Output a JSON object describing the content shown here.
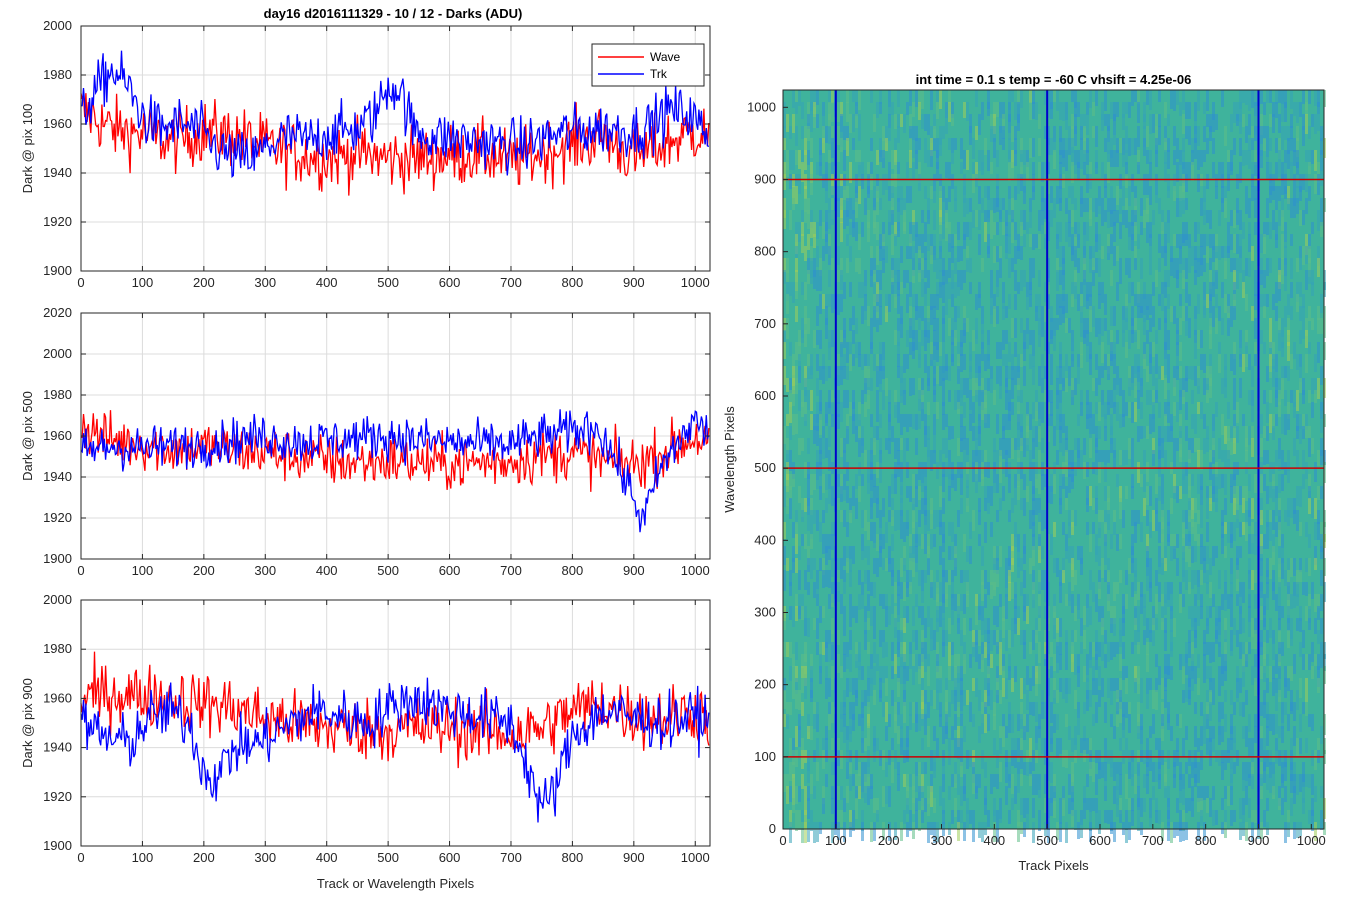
{
  "figure": {
    "title": "day16 d2016111329 - 10 / 12 - Darks (ADU)"
  },
  "chart_data": [
    {
      "id": "panel1",
      "type": "line",
      "ylabel": "Dark @ pix 100",
      "xlabel": "",
      "xlim": [
        0,
        1024
      ],
      "ylim": [
        1900,
        2000
      ],
      "xticks": [
        0,
        100,
        200,
        300,
        400,
        500,
        600,
        700,
        800,
        900,
        1000
      ],
      "yticks": [
        1900,
        1920,
        1940,
        1960,
        1980,
        2000
      ],
      "grid": true,
      "legend": {
        "placement": "top-right",
        "entries": [
          "Wave",
          "Trk"
        ]
      },
      "series": [
        {
          "name": "Wave",
          "color": "#ff0000",
          "x": [
            0,
            50,
            100,
            150,
            200,
            250,
            300,
            350,
            400,
            450,
            500,
            550,
            600,
            650,
            700,
            750,
            800,
            850,
            900,
            950,
            1000,
            1023
          ],
          "y": [
            1966,
            1958,
            1956,
            1953,
            1957,
            1955,
            1951,
            1948,
            1946,
            1948,
            1946,
            1946,
            1947,
            1948,
            1945,
            1948,
            1952,
            1955,
            1946,
            1952,
            1957,
            1955
          ]
        },
        {
          "name": "Trk",
          "color": "#0000ff",
          "x": [
            0,
            20,
            50,
            75,
            100,
            130,
            160,
            190,
            220,
            250,
            280,
            310,
            340,
            370,
            400,
            450,
            480,
            500,
            520,
            540,
            570,
            600,
            640,
            680,
            720,
            760,
            800,
            850,
            900,
            930,
            960,
            990,
            1010,
            1023
          ],
          "y": [
            1962,
            1972,
            1982,
            1976,
            1963,
            1958,
            1960,
            1958,
            1950,
            1946,
            1946,
            1952,
            1955,
            1953,
            1956,
            1958,
            1964,
            1976,
            1974,
            1958,
            1955,
            1954,
            1953,
            1952,
            1951,
            1955,
            1957,
            1958,
            1957,
            1960,
            1966,
            1964,
            1958,
            1956
          ]
        }
      ]
    },
    {
      "id": "panel2",
      "type": "line",
      "ylabel": "Dark @ pix 500",
      "xlabel": "",
      "xlim": [
        0,
        1024
      ],
      "ylim": [
        1900,
        2020
      ],
      "xticks": [
        0,
        100,
        200,
        300,
        400,
        500,
        600,
        700,
        800,
        900,
        1000
      ],
      "yticks": [
        1900,
        1920,
        1940,
        1960,
        1980,
        2000,
        2020
      ],
      "grid": true,
      "series": [
        {
          "name": "Wave",
          "color": "#ff0000",
          "x": [
            0,
            50,
            100,
            150,
            200,
            250,
            300,
            350,
            400,
            450,
            500,
            550,
            600,
            650,
            700,
            750,
            800,
            850,
            900,
            950,
            1000,
            1023
          ],
          "y": [
            1965,
            1958,
            1956,
            1954,
            1955,
            1953,
            1952,
            1950,
            1948,
            1947,
            1948,
            1947,
            1946,
            1947,
            1948,
            1950,
            1952,
            1948,
            1946,
            1952,
            1960,
            1955
          ]
        },
        {
          "name": "Trk",
          "color": "#0000ff",
          "x": [
            0,
            50,
            100,
            150,
            200,
            250,
            300,
            350,
            400,
            450,
            500,
            550,
            600,
            650,
            700,
            750,
            800,
            840,
            870,
            900,
            915,
            940,
            970,
            1000,
            1023
          ],
          "y": [
            1952,
            1955,
            1954,
            1955,
            1956,
            1958,
            1960,
            1957,
            1958,
            1959,
            1960,
            1958,
            1957,
            1956,
            1956,
            1960,
            1962,
            1965,
            1948,
            1930,
            1918,
            1942,
            1956,
            1968,
            1960
          ]
        }
      ]
    },
    {
      "id": "panel3",
      "type": "line",
      "ylabel": "Dark @ pix 900",
      "xlabel": "Track or Wavelength Pixels",
      "xlim": [
        0,
        1024
      ],
      "ylim": [
        1900,
        2000
      ],
      "xticks": [
        0,
        100,
        200,
        300,
        400,
        500,
        600,
        700,
        800,
        900,
        1000
      ],
      "yticks": [
        1900,
        1920,
        1940,
        1960,
        1980,
        2000
      ],
      "grid": true,
      "series": [
        {
          "name": "Wave",
          "color": "#ff0000",
          "x": [
            0,
            50,
            100,
            150,
            200,
            250,
            300,
            350,
            400,
            450,
            500,
            550,
            600,
            650,
            700,
            750,
            800,
            850,
            900,
            950,
            1000,
            1023
          ],
          "y": [
            1960,
            1962,
            1961,
            1960,
            1958,
            1956,
            1952,
            1950,
            1948,
            1948,
            1947,
            1948,
            1948,
            1947,
            1945,
            1948,
            1955,
            1958,
            1953,
            1952,
            1955,
            1952
          ]
        },
        {
          "name": "Trk",
          "color": "#0000ff",
          "x": [
            0,
            40,
            80,
            110,
            150,
            180,
            200,
            220,
            250,
            290,
            330,
            380,
            420,
            470,
            500,
            550,
            600,
            650,
            700,
            730,
            750,
            770,
            800,
            850,
            900,
            950,
            1000,
            1023
          ],
          "y": [
            1950,
            1944,
            1942,
            1952,
            1955,
            1948,
            1930,
            1928,
            1940,
            1942,
            1948,
            1955,
            1953,
            1950,
            1956,
            1960,
            1955,
            1953,
            1950,
            1930,
            1915,
            1922,
            1945,
            1955,
            1952,
            1950,
            1953,
            1950
          ]
        }
      ]
    },
    {
      "id": "image",
      "type": "heatmap",
      "title": "int time = 0.1 s   temp = -60 C   vhsift = 4.25e-06",
      "xlabel": "Track Pixels",
      "ylabel": "Wavelength Pixels",
      "xlim": [
        0,
        1024
      ],
      "ylim": [
        0,
        1024
      ],
      "xticks": [
        0,
        100,
        200,
        300,
        400,
        500,
        600,
        700,
        800,
        900,
        1000
      ],
      "yticks": [
        0,
        100,
        200,
        300,
        400,
        500,
        600,
        700,
        800,
        900,
        1000
      ],
      "grid": false,
      "colors": {
        "base": "#3fb39c",
        "dark": "#2d8fd0",
        "light": "#9fcd5a"
      },
      "vertical_markers": {
        "values": [
          100,
          500,
          900
        ],
        "color": "#0000cc"
      },
      "horizontal_markers": {
        "values": [
          100,
          500,
          900
        ],
        "color": "#cc0000"
      }
    }
  ]
}
